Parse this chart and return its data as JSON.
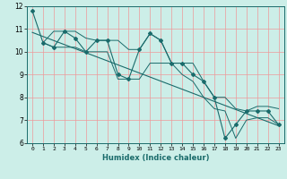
{
  "xlabel": "Humidex (Indice chaleur)",
  "ylabel": "",
  "bg_color": "#cceee8",
  "line_color": "#1a6b6b",
  "grid_color": "#ee9999",
  "xlim": [
    -0.5,
    23.5
  ],
  "ylim": [
    6,
    12
  ],
  "yticks": [
    6,
    7,
    8,
    9,
    10,
    11,
    12
  ],
  "xticks": [
    0,
    1,
    2,
    3,
    4,
    5,
    6,
    7,
    8,
    9,
    10,
    11,
    12,
    13,
    14,
    15,
    16,
    17,
    18,
    19,
    20,
    21,
    22,
    23
  ],
  "main_data_x": [
    0,
    1,
    2,
    3,
    4,
    5,
    6,
    7,
    8,
    9,
    10,
    11,
    12,
    13,
    14,
    15,
    16,
    17,
    18,
    19,
    20,
    21,
    22,
    23
  ],
  "main_data_y": [
    11.8,
    10.4,
    10.2,
    10.9,
    10.6,
    10.0,
    10.5,
    10.5,
    9.0,
    8.8,
    10.1,
    10.8,
    10.5,
    9.5,
    9.5,
    9.0,
    8.7,
    8.0,
    6.2,
    6.8,
    7.4,
    7.4,
    7.4,
    6.8
  ],
  "upper_line_x": [
    1,
    2,
    3,
    4,
    5,
    6,
    7,
    8,
    9,
    10,
    11,
    12,
    13,
    14,
    15,
    16,
    17,
    18,
    19,
    20,
    21,
    22,
    23
  ],
  "upper_line_y": [
    10.4,
    10.9,
    10.9,
    10.9,
    10.6,
    10.5,
    10.5,
    10.5,
    10.1,
    10.1,
    10.8,
    10.5,
    9.5,
    9.5,
    9.5,
    8.7,
    8.0,
    8.0,
    7.5,
    7.4,
    7.6,
    7.6,
    7.5
  ],
  "lower_line_x": [
    1,
    2,
    3,
    4,
    5,
    6,
    7,
    8,
    9,
    10,
    11,
    12,
    13,
    14,
    15,
    16,
    17,
    18,
    19,
    20,
    21,
    22,
    23
  ],
  "lower_line_y": [
    10.4,
    10.2,
    10.2,
    10.2,
    10.0,
    10.0,
    10.0,
    8.8,
    8.8,
    8.8,
    9.5,
    9.5,
    9.5,
    9.0,
    8.7,
    8.0,
    7.5,
    7.4,
    6.2,
    7.0,
    7.1,
    7.1,
    6.8
  ],
  "trend_line_x": [
    0,
    23
  ],
  "trend_line_y": [
    10.85,
    6.75
  ]
}
